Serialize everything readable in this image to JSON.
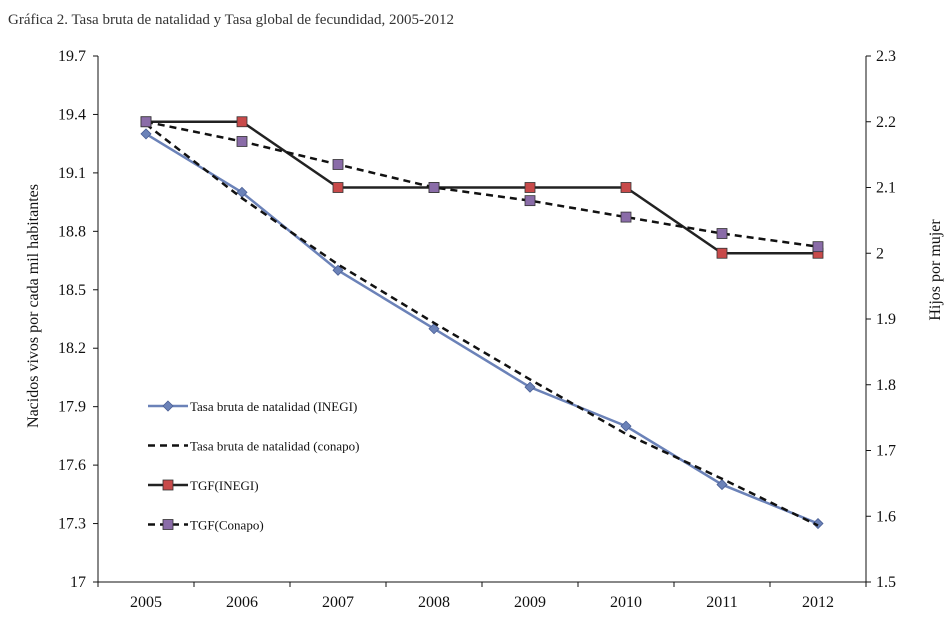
{
  "chart_data": {
    "type": "line",
    "title": "Gráfica 2. Tasa bruta de natalidad y Tasa global de fecundidad, 2005-2012",
    "categories": [
      "2005",
      "2006",
      "2007",
      "2008",
      "2009",
      "2010",
      "2011",
      "2012"
    ],
    "ylabel": "Nacidos vivos por cada mil habitantes",
    "y2label": "Hijos por mujer",
    "ylim": [
      17,
      19.7
    ],
    "y2lim": [
      1.5,
      2.3
    ],
    "yticks": [
      "17",
      "17.3",
      "17.6",
      "17.9",
      "18.2",
      "18.5",
      "18.8",
      "19.1",
      "19.4",
      "19.7"
    ],
    "y2ticks": [
      "1.5",
      "1.6",
      "1.7",
      "1.8",
      "1.9",
      "2",
      "2.1",
      "2.2",
      "2.3"
    ],
    "series": [
      {
        "name": "Tasa bruta de natalidad (INEGI)",
        "axis": "left",
        "color": "#6b82b8",
        "style": "solid",
        "marker": "diamond",
        "values": [
          19.3,
          19.0,
          18.6,
          18.3,
          18.0,
          17.8,
          17.5,
          17.3
        ]
      },
      {
        "name": "Tasa bruta de natalidad (conapo)",
        "axis": "left",
        "color": "#111111",
        "style": "dashed",
        "marker": "none",
        "values": [
          19.35,
          18.97,
          18.63,
          18.33,
          18.04,
          17.76,
          17.53,
          17.29
        ]
      },
      {
        "name": "TGF(INEGI)",
        "axis": "right",
        "color": "#222222",
        "style": "solid",
        "marker": "square",
        "markerColor": "#c84a4a",
        "values": [
          2.2,
          2.2,
          2.1,
          2.1,
          2.1,
          2.1,
          2.0,
          2.0
        ]
      },
      {
        "name": "TGF(Conapo)",
        "axis": "right",
        "color": "#111111",
        "style": "dashed",
        "marker": "square",
        "markerColor": "#8a6ca8",
        "values": [
          2.2,
          2.17,
          2.135,
          2.1,
          2.08,
          2.055,
          2.03,
          2.01
        ]
      }
    ],
    "legend": "left-middle"
  }
}
